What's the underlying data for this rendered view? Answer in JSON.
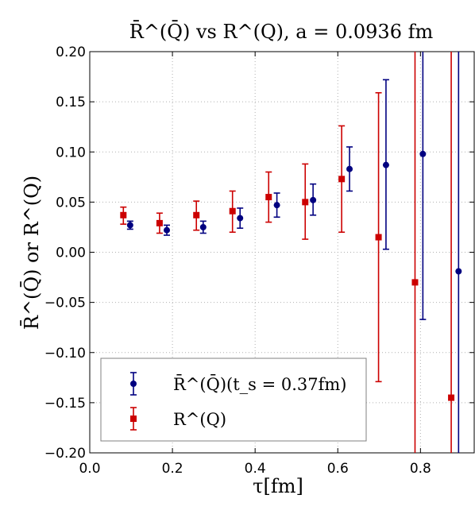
{
  "chart_data": {
    "type": "scatter",
    "title": "R̄^(Q̄) vs R^(Q), a = 0.0936 fm",
    "xlabel": "τ[fm]",
    "ylabel": "R̄^(Q̄) or R^(Q)",
    "xlim": [
      0.0,
      0.93
    ],
    "ylim": [
      -0.2,
      0.2
    ],
    "x_ticks": [
      "0.0",
      "0.2",
      "0.4",
      "0.6",
      "0.8"
    ],
    "y_ticks": [
      "0.20",
      "0.15",
      "0.10",
      "0.05",
      "0.00",
      "−0.05",
      "−0.10",
      "−0.15",
      "−0.20"
    ],
    "grid": true,
    "legend_position": "bottom-left",
    "series": [
      {
        "name": "R̄^(Q̄)(t_s = 0.37fm)",
        "marker": "circle",
        "color": "#000080",
        "x": [
          0.0977,
          0.1864,
          0.2744,
          0.3636,
          0.4527,
          0.5402,
          0.6284,
          0.7166,
          0.8058,
          0.8922
        ],
        "y": [
          0.027,
          0.022,
          0.025,
          0.034,
          0.047,
          0.052,
          0.083,
          0.087,
          0.098,
          -0.019
        ],
        "yerr_low": [
          0.023,
          0.017,
          0.019,
          0.024,
          0.035,
          0.037,
          0.061,
          0.003,
          -0.067,
          -0.2
        ],
        "yerr_high": [
          0.031,
          0.027,
          0.031,
          0.044,
          0.059,
          0.068,
          0.105,
          0.172,
          0.2,
          0.2
        ]
      },
      {
        "name": "R^(Q)",
        "marker": "square",
        "color": "#cc0000",
        "x": [
          0.0813,
          0.1689,
          0.2579,
          0.3453,
          0.4328,
          0.5212,
          0.6094,
          0.6986,
          0.7868,
          0.8744
        ],
        "y": [
          0.037,
          0.029,
          0.037,
          0.041,
          0.055,
          0.05,
          0.073,
          0.015,
          -0.03,
          -0.145
        ],
        "yerr_low": [
          0.028,
          0.019,
          0.022,
          0.02,
          0.03,
          0.013,
          0.02,
          -0.129,
          -0.2,
          -0.2
        ],
        "yerr_high": [
          0.045,
          0.039,
          0.051,
          0.061,
          0.08,
          0.088,
          0.126,
          0.159,
          0.2,
          0.2
        ]
      }
    ]
  }
}
